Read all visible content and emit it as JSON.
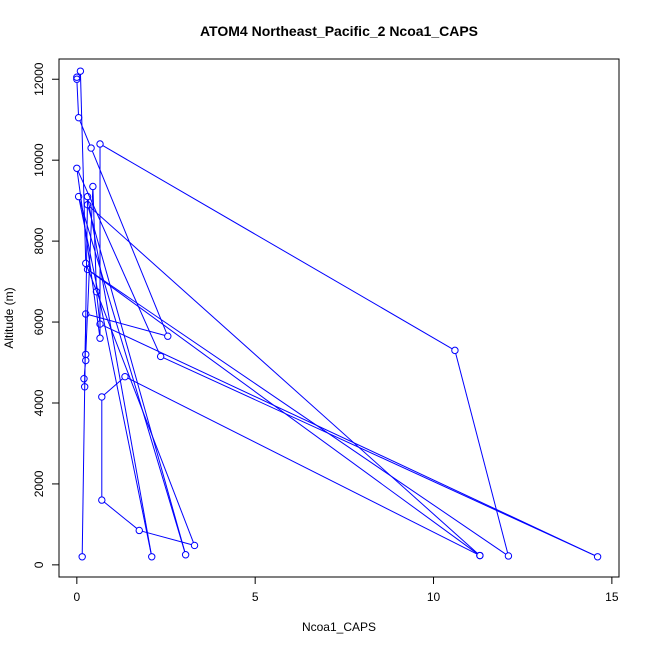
{
  "chart_data": {
    "type": "line",
    "title": "ATOM4 Northeast_Pacific_2 Ncoa1_CAPS",
    "xlabel": "Ncoa1_CAPS",
    "ylabel": "Altitude (m)",
    "xlim": [
      -0.5,
      15.2
    ],
    "ylim": [
      -300,
      12500
    ],
    "xticks": [
      "0",
      "5",
      "10",
      "15"
    ],
    "yticks": [
      "0",
      "2000",
      "4000",
      "6000",
      "8000",
      "10000",
      "12000"
    ],
    "color": "#0000ff",
    "points": [
      {
        "x": 0.15,
        "y": 200
      },
      {
        "x": 0.3,
        "y": 9100
      },
      {
        "x": 2.1,
        "y": 200
      },
      {
        "x": 0.05,
        "y": 9100
      },
      {
        "x": 3.05,
        "y": 250
      },
      {
        "x": 0.3,
        "y": 8900
      },
      {
        "x": 11.3,
        "y": 230
      },
      {
        "x": 0.3,
        "y": 7300
      },
      {
        "x": 12.1,
        "y": 220
      },
      {
        "x": 10.6,
        "y": 5300
      },
      {
        "x": 0.65,
        "y": 10400
      },
      {
        "x": 0.65,
        "y": 5600
      },
      {
        "x": 0.0,
        "y": 9800
      },
      {
        "x": 2.35,
        "y": 5150
      },
      {
        "x": 14.6,
        "y": 200
      },
      {
        "x": 0.65,
        "y": 5950
      },
      {
        "x": 0.55,
        "y": 6750
      },
      {
        "x": 0.45,
        "y": 9350
      },
      {
        "x": 0.25,
        "y": 5200
      },
      {
        "x": 0.25,
        "y": 5050
      },
      {
        "x": 0.2,
        "y": 4600
      },
      {
        "x": 0.22,
        "y": 4400
      },
      {
        "x": 0.25,
        "y": 6200
      },
      {
        "x": 2.55,
        "y": 5650
      },
      {
        "x": 0.4,
        "y": 10300
      },
      {
        "x": 0.05,
        "y": 11050
      },
      {
        "x": 0.0,
        "y": 12000
      },
      {
        "x": 0.0,
        "y": 12050
      },
      {
        "x": 0.1,
        "y": 12200
      },
      {
        "x": 0.25,
        "y": 7450
      },
      {
        "x": 3.3,
        "y": 480
      },
      {
        "x": 1.75,
        "y": 850
      },
      {
        "x": 0.7,
        "y": 1600
      },
      {
        "x": 0.7,
        "y": 4150
      },
      {
        "x": 1.35,
        "y": 4650
      },
      {
        "x": 11.3,
        "y": 230
      }
    ]
  }
}
